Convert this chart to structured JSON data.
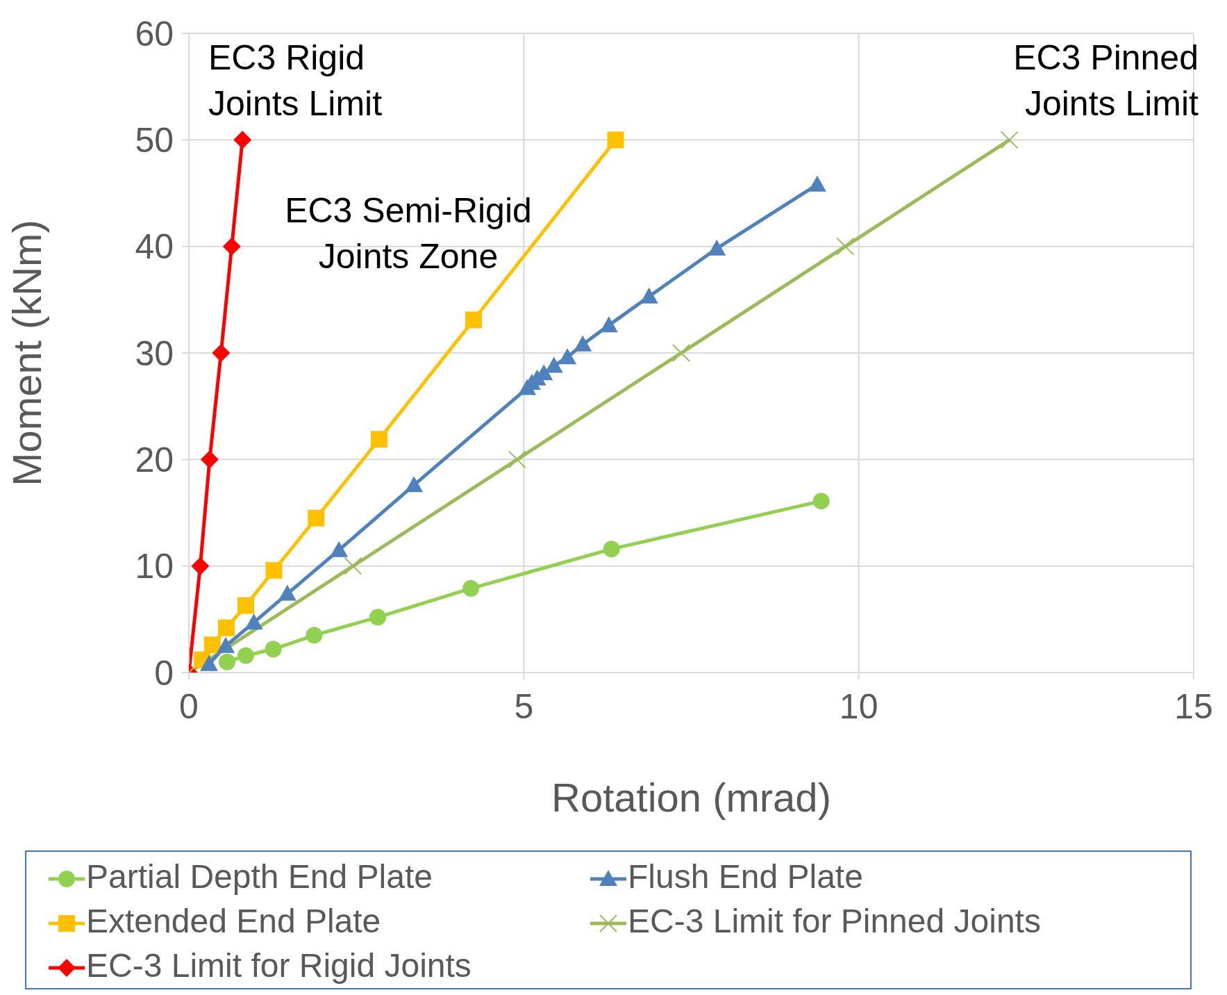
{
  "chart_data": {
    "type": "line",
    "xlabel": "Rotation (mrad)",
    "ylabel": "Moment (kNm)",
    "xlim": [
      0,
      15
    ],
    "xticks": [
      0,
      5,
      10,
      15
    ],
    "ylim": [
      0,
      60
    ],
    "yticks": [
      0,
      10,
      20,
      30,
      40,
      50,
      60
    ],
    "grid": true,
    "legend": "bottom",
    "annotations": [
      "EC3 Rigid Joints Limit",
      "EC3 Semi-Rigid Joints Zone",
      "EC3 Pinned Joints Limit"
    ],
    "series": [
      {
        "name": "Partial Depth End Plate",
        "color": "#92d050",
        "marker": "circle",
        "x": [
          0.57,
          0.85,
          1.26,
          1.87,
          2.82,
          4.21,
          6.31,
          9.44
        ],
        "values": [
          1.0,
          1.6,
          2.2,
          3.5,
          5.2,
          7.9,
          11.6,
          16.1
        ]
      },
      {
        "name": "Flush End Plate",
        "color": "#4f81bd",
        "marker": "triangle",
        "x": [
          0.3,
          0.55,
          0.97,
          1.47,
          2.24,
          3.36,
          5.05,
          5.12,
          5.2,
          5.3,
          5.45,
          5.65,
          5.88,
          6.27,
          6.87,
          7.88,
          9.38
        ],
        "values": [
          0.8,
          2.5,
          4.7,
          7.4,
          11.5,
          17.6,
          26.7,
          27.2,
          27.6,
          28.1,
          28.8,
          29.6,
          30.8,
          32.6,
          35.3,
          39.8,
          45.8
        ]
      },
      {
        "name": "Extended End Plate",
        "color": "#ffc000",
        "marker": "square",
        "x": [
          0.2,
          0.35,
          0.56,
          0.85,
          1.27,
          1.9,
          2.84,
          4.25,
          6.37
        ],
        "values": [
          1.2,
          2.6,
          4.2,
          6.3,
          9.6,
          14.5,
          21.9,
          33.1,
          50
        ]
      },
      {
        "name": "EC-3 Limit for Pinned Joints",
        "color": "#9bbb59",
        "marker": "cross",
        "x": [
          0,
          2.45,
          4.9,
          7.35,
          9.8,
          12.25
        ],
        "values": [
          0,
          10,
          20,
          30,
          40,
          50
        ]
      },
      {
        "name": "EC-3 Limit for Rigid Joints",
        "color": "#ff0000",
        "marker": "diamond",
        "x": [
          0,
          0.17,
          0.31,
          0.48,
          0.64,
          0.8
        ],
        "values": [
          0,
          10,
          20,
          30,
          40,
          50
        ]
      }
    ]
  }
}
